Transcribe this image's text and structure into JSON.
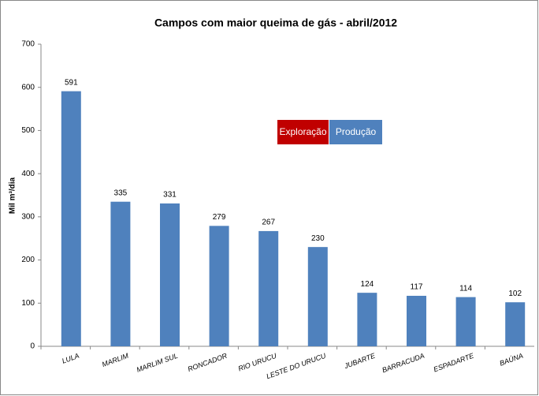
{
  "chart_data": {
    "type": "bar",
    "title": "Campos com maior queima de gás -  abril/2012",
    "y_label": "Mil m³/dia",
    "categories": [
      "LULA",
      "MARLIM",
      "MARLIM SUL",
      "RONCADOR",
      "RIO URUCU",
      "LESTE DO URUCU",
      "JUBARTE",
      "BARRACUDA",
      "ESPADARTE",
      "BAÚNA"
    ],
    "values": [
      591,
      335,
      331,
      279,
      267,
      230,
      124,
      117,
      114,
      102
    ],
    "color": "#4f81bd",
    "ylim": [
      0,
      700
    ],
    "yticks": [
      0,
      100,
      200,
      300,
      400,
      500,
      600,
      700
    ],
    "grid": false,
    "legend": [
      {
        "name": "Exploração",
        "color": "#c00000"
      },
      {
        "name": "Produção",
        "color": "#4f81bd"
      }
    ]
  }
}
